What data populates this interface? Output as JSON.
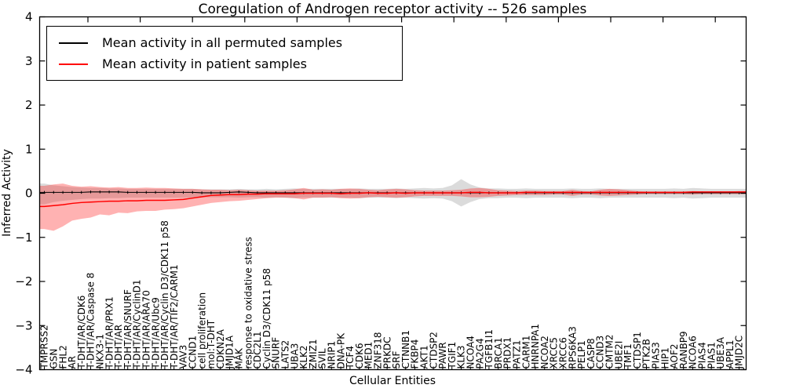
{
  "chart_data": {
    "type": "line",
    "title": "Coregulation of Androgen receptor activity -- 526 samples",
    "xlabel": "Cellular Entities",
    "ylabel": "Inferred Activity",
    "ylim": [
      -4,
      4
    ],
    "grid": false,
    "legend_position": "upper left",
    "yticks": [
      {
        "v": 4,
        "label": "4"
      },
      {
        "v": 3,
        "label": "3"
      },
      {
        "v": 2,
        "label": "2"
      },
      {
        "v": 1,
        "label": "1"
      },
      {
        "v": 0,
        "label": "0"
      },
      {
        "v": -1,
        "label": "−1"
      },
      {
        "v": -2,
        "label": "−2"
      },
      {
        "v": -3,
        "label": "−3"
      },
      {
        "v": -4,
        "label": "−4"
      }
    ],
    "categories": [
      "TMPRSS2",
      "GSN",
      "FHL2",
      "AR",
      "T-DHT/AR/CDK6",
      "T-DHT/AR/Caspase 8",
      "NKX3-1",
      "T-DHT/AR/PRX1",
      "T-DHT/AR",
      "T-DHT/AR/SNURF",
      "T-DHT/AR/CyclinD1",
      "T-DHT/AR/ARA70",
      "T-DHT/AR/Ubc9",
      "T-DHT/AR/Cyclin D3/CDK11 p58",
      "T-DHT/AR/TIF2/CARM1",
      "VAV3",
      "CCND1",
      "cell proliferation",
      "mol:T-DHT",
      "CDKN2A",
      "JMJD1A",
      "MAK",
      "response to oxidative stress",
      "CDC2L1",
      "Cyclin D3/CDK11 p58",
      "SNURF",
      "LATS2",
      "UBA3",
      "KLK2",
      "ZMIZ1",
      "SVIL",
      "NRIP1",
      "DNA-PK",
      "TCF4",
      "CDK6",
      "MED1",
      "ZNF318",
      "PRKDC",
      "SRF",
      "CTNNB1",
      "FKBP4",
      "AKT1",
      "CTDSP2",
      "PAWR",
      "TGIF1",
      "KLK3",
      "NCOA4",
      "PA2G4",
      "TGFB1I1",
      "BRCA1",
      "PRDX1",
      "PATZ1",
      "CARM1",
      "HNRNPA1",
      "NCOA2",
      "XRCC5",
      "XRCC6",
      "RPS6KA3",
      "PELP1",
      "CASP8",
      "CCND3",
      "CMTM2",
      "UBE2I",
      "TMF1",
      "CTDSP1",
      "PTK2B",
      "PIAS3",
      "HIP1",
      "AOF2",
      "RANBP9",
      "NCOA6",
      "PIAS4",
      "PIAS1",
      "UBE3A",
      "APPL1",
      "JMJD2C"
    ],
    "series": [
      {
        "name": "Mean activity in all permuted samples",
        "color": "#000000",
        "values": [
          0.02,
          0.02,
          0.02,
          0.02,
          0.02,
          0.03,
          0.03,
          0.03,
          0.03,
          0.02,
          0.02,
          0.02,
          0.02,
          0.02,
          0.02,
          0.02,
          0.02,
          0.01,
          0.01,
          0.01,
          0.02,
          0.03,
          0.02,
          0.01,
          0.01,
          0.01,
          0.01,
          0.01,
          0.01,
          0.01,
          0.01,
          0.01,
          0.01,
          0.01,
          0.01,
          0.01,
          0.01,
          0.01,
          0.01,
          0.01,
          0.01,
          0.01,
          0.01,
          0.01,
          0.01,
          0.01,
          0.01,
          0.01,
          0.01,
          0.01,
          0.01,
          0.01,
          0.01,
          0.01,
          0.01,
          0.01,
          0.01,
          0.01,
          0.01,
          0.01,
          0.01,
          0.01,
          0.01,
          0.01,
          0.01,
          0.01,
          0.01,
          0.01,
          0.01,
          0.01,
          0.01,
          0.01,
          0.01,
          0.01,
          0.01,
          0.01
        ]
      },
      {
        "name": "Mean activity in patient samples",
        "color": "#ff0000",
        "values": [
          -0.3,
          -0.28,
          -0.26,
          -0.23,
          -0.21,
          -0.2,
          -0.19,
          -0.18,
          -0.18,
          -0.17,
          -0.17,
          -0.16,
          -0.16,
          -0.16,
          -0.15,
          -0.14,
          -0.11,
          -0.08,
          -0.05,
          -0.04,
          -0.03,
          -0.03,
          -0.02,
          -0.02,
          -0.01,
          -0.01,
          -0.01,
          -0.01,
          0.0,
          0.0,
          0.0,
          0.0,
          -0.01,
          0.0,
          0.0,
          0.01,
          0.0,
          0.0,
          0.01,
          0.0,
          0.01,
          0.01,
          0.01,
          0.01,
          0.01,
          0.01,
          0.02,
          0.02,
          0.01,
          0.01,
          0.01,
          0.01,
          0.02,
          0.02,
          0.02,
          0.02,
          0.02,
          0.02,
          0.02,
          0.02,
          0.02,
          0.02,
          0.02,
          0.02,
          0.02,
          0.02,
          0.02,
          0.02,
          0.02,
          0.02,
          0.03,
          0.03,
          0.03,
          0.03,
          0.03,
          0.03
        ]
      }
    ],
    "bands": [
      {
        "name": "permuted std band",
        "color": "#999999",
        "opacity": 0.35,
        "upper": [
          0.22,
          0.18,
          0.16,
          0.14,
          0.13,
          0.12,
          0.12,
          0.11,
          0.11,
          0.1,
          0.1,
          0.1,
          0.1,
          0.1,
          0.1,
          0.1,
          0.1,
          0.09,
          0.09,
          0.09,
          0.09,
          0.1,
          0.09,
          0.09,
          0.1,
          0.09,
          0.1,
          0.11,
          0.1,
          0.1,
          0.1,
          0.1,
          0.1,
          0.1,
          0.11,
          0.1,
          0.1,
          0.1,
          0.11,
          0.1,
          0.11,
          0.12,
          0.11,
          0.12,
          0.18,
          0.32,
          0.2,
          0.13,
          0.11,
          0.11,
          0.1,
          0.1,
          0.11,
          0.1,
          0.1,
          0.1,
          0.1,
          0.11,
          0.1,
          0.1,
          0.11,
          0.1,
          0.1,
          0.1,
          0.1,
          0.1,
          0.1,
          0.1,
          0.11,
          0.1,
          0.12,
          0.11,
          0.1,
          0.1,
          0.1,
          0.1
        ],
        "lower": [
          -0.25,
          -0.2,
          -0.17,
          -0.15,
          -0.13,
          -0.12,
          -0.12,
          -0.11,
          -0.11,
          -0.1,
          -0.1,
          -0.1,
          -0.1,
          -0.1,
          -0.1,
          -0.1,
          -0.1,
          -0.09,
          -0.09,
          -0.09,
          -0.09,
          -0.1,
          -0.09,
          -0.09,
          -0.1,
          -0.09,
          -0.1,
          -0.11,
          -0.1,
          -0.1,
          -0.1,
          -0.1,
          -0.1,
          -0.1,
          -0.11,
          -0.1,
          -0.1,
          -0.1,
          -0.11,
          -0.1,
          -0.11,
          -0.12,
          -0.11,
          -0.12,
          -0.18,
          -0.3,
          -0.2,
          -0.13,
          -0.11,
          -0.11,
          -0.1,
          -0.1,
          -0.11,
          -0.1,
          -0.1,
          -0.1,
          -0.1,
          -0.11,
          -0.1,
          -0.1,
          -0.11,
          -0.1,
          -0.1,
          -0.1,
          -0.1,
          -0.1,
          -0.1,
          -0.1,
          -0.11,
          -0.1,
          -0.12,
          -0.11,
          -0.1,
          -0.1,
          -0.1,
          -0.1
        ]
      },
      {
        "name": "patient std band",
        "color": "#ff0000",
        "opacity": 0.3,
        "upper": [
          0.17,
          0.2,
          0.22,
          0.17,
          0.15,
          0.16,
          0.14,
          0.13,
          0.14,
          0.12,
          0.12,
          0.13,
          0.12,
          0.12,
          0.11,
          0.1,
          0.1,
          0.09,
          0.08,
          0.08,
          0.07,
          0.08,
          0.07,
          0.06,
          0.06,
          0.06,
          0.07,
          0.09,
          0.12,
          0.08,
          0.09,
          0.08,
          0.1,
          0.11,
          0.1,
          0.08,
          0.07,
          0.09,
          0.1,
          0.09,
          0.07,
          0.06,
          0.06,
          0.06,
          0.07,
          0.08,
          0.11,
          0.12,
          0.1,
          0.07,
          0.06,
          0.05,
          0.06,
          0.06,
          0.05,
          0.05,
          0.05,
          0.08,
          0.05,
          0.04,
          0.08,
          0.1,
          0.09,
          0.07,
          0.05,
          0.04,
          0.04,
          0.04,
          0.04,
          0.04,
          0.05,
          0.04,
          0.04,
          0.04,
          0.04,
          0.05
        ],
        "lower": [
          -0.81,
          -0.85,
          -0.75,
          -0.62,
          -0.58,
          -0.55,
          -0.48,
          -0.5,
          -0.44,
          -0.45,
          -0.41,
          -0.4,
          -0.4,
          -0.37,
          -0.36,
          -0.34,
          -0.3,
          -0.26,
          -0.22,
          -0.2,
          -0.18,
          -0.17,
          -0.15,
          -0.13,
          -0.11,
          -0.1,
          -0.1,
          -0.11,
          -0.14,
          -0.1,
          -0.1,
          -0.09,
          -0.11,
          -0.12,
          -0.11,
          -0.09,
          -0.08,
          -0.09,
          -0.1,
          -0.09,
          -0.07,
          -0.06,
          -0.06,
          -0.06,
          -0.06,
          -0.07,
          -0.09,
          -0.09,
          -0.08,
          -0.06,
          -0.05,
          -0.04,
          -0.04,
          -0.04,
          -0.04,
          -0.03,
          -0.03,
          -0.06,
          -0.03,
          -0.03,
          -0.05,
          -0.06,
          -0.05,
          -0.04,
          -0.03,
          -0.02,
          -0.02,
          -0.02,
          -0.02,
          -0.02,
          -0.03,
          -0.02,
          -0.02,
          -0.02,
          -0.02,
          -0.02
        ]
      }
    ]
  }
}
